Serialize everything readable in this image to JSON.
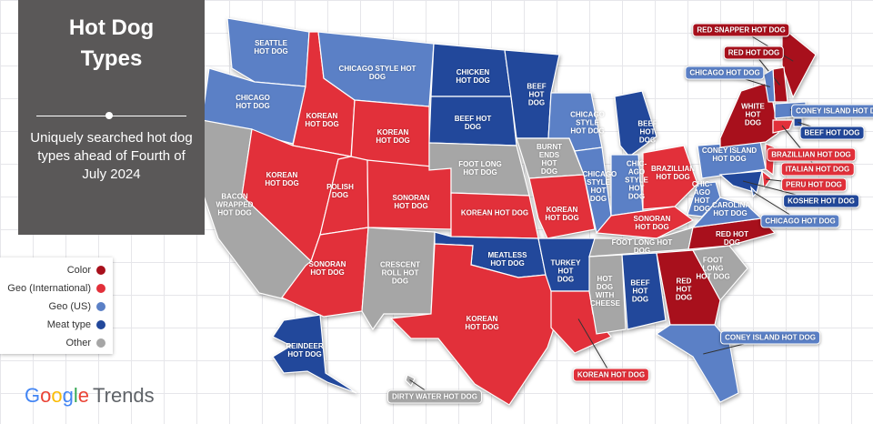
{
  "title": "Hot Dog Types",
  "subtitle": "Uniquely searched hot dog types ahead of Fourth of July 2024",
  "legend": [
    {
      "label": "Color",
      "color": "#a8101c"
    },
    {
      "label": "Geo (International)",
      "color": "#e2303a"
    },
    {
      "label": "Geo (US)",
      "color": "#5b80c6"
    },
    {
      "label": "Meat type",
      "color": "#22489b"
    },
    {
      "label": "Other",
      "color": "#a6a6a6"
    }
  ],
  "brand": {
    "google": "Google",
    "trends": "Trends"
  },
  "states": [
    {
      "label": "SEATTLE HOT DOG",
      "category": 2
    },
    {
      "label": "CHICAGO HOT DOG",
      "category": 2
    },
    {
      "label": "BACON WRAPPED HOT DOG",
      "category": 4
    },
    {
      "label": "KOREAN HOT DOG",
      "category": 1
    },
    {
      "label": "KOREAN HOT DOG",
      "category": 1
    },
    {
      "label": "CHICAGO STYLE HOT DOG",
      "category": 2
    },
    {
      "label": "KOREAN HOT DOG",
      "category": 1
    },
    {
      "label": "POLISH DOG",
      "category": 1
    },
    {
      "label": "SONORAN HOT DOG",
      "category": 1
    },
    {
      "label": "SONORAN HOT DOG",
      "category": 1
    },
    {
      "label": "CRESCENT ROLL HOT DOG",
      "category": 4
    },
    {
      "label": "CHICKEN HOT DOG",
      "category": 3
    },
    {
      "label": "BEEF HOT DOG",
      "category": 3
    },
    {
      "label": "FOOT LONG HOT DOG",
      "category": 4
    },
    {
      "label": "KOREAN HOT DOG",
      "category": 1
    },
    {
      "label": "MEATLESS HOT DOG",
      "category": 3
    },
    {
      "label": "KOREAN HOT DOG",
      "category": 1
    },
    {
      "label": "BEEF HOT DOG",
      "category": 3
    },
    {
      "label": "BURNT ENDS HOT DOG",
      "category": 4
    },
    {
      "label": "KOREAN HOT DOG",
      "category": 1
    },
    {
      "label": "TURKEY HOT DOG",
      "category": 3
    },
    {
      "label": "KOREAN HOT DOG",
      "category": 1
    },
    {
      "label": "CHICAGO STYLE HOT DOG",
      "category": 2
    },
    {
      "label": "CHICAGO STYLE HOT DOG",
      "category": 2
    },
    {
      "label": "BEEF HOT DOG",
      "category": 3
    },
    {
      "label": "CHIC-AGO STYLE HOT DOG",
      "category": 2
    },
    {
      "label": "BRAZILLIAN HOT DOG",
      "category": 1
    },
    {
      "label": "SONORAN HOT DOG",
      "category": 1
    },
    {
      "label": "FOOT LONG HOT DOG",
      "category": 4
    },
    {
      "label": "HOT DOG WITH CHEESE",
      "category": 4
    },
    {
      "label": "BEEF HOT DOG",
      "category": 3
    },
    {
      "label": "RED HOT DOG",
      "category": 0
    },
    {
      "label": "CONEY ISLAND HOT DOG",
      "category": 2
    },
    {
      "label": "FOOT LONG HOT DOG",
      "category": 4
    },
    {
      "label": "RED HOT DOG",
      "category": 0
    },
    {
      "label": "CAROLINA HOT DOG",
      "category": 2
    },
    {
      "label": "CHIC-AGO HOT DOG",
      "category": 2
    },
    {
      "label": "CONEY ISLAND HOT DOG",
      "category": 2
    },
    {
      "label": "WHITE HOT DOG",
      "category": 0
    },
    {
      "label": "RED SNAPPER HOT DOG",
      "category": 0
    },
    {
      "label": "RED HOT DOG",
      "category": 0
    },
    {
      "label": "CHICAGO HOT DOG",
      "category": 2
    },
    {
      "label": "CONEY ISLAND HOT DOG",
      "category": 2
    },
    {
      "label": "BEEF HOT DOG",
      "category": 3
    },
    {
      "label": "BRAZILLIAN HOT DOG",
      "category": 1
    },
    {
      "label": "ITALIAN HOT DOG",
      "category": 1
    },
    {
      "label": "PERU HOT DOG",
      "category": 1
    },
    {
      "label": "KOSHER HOT DOG",
      "category": 3
    },
    {
      "label": "CHICAGO HOT DOG",
      "category": 2
    },
    {
      "label": "REINDEER HOT DOG",
      "category": 3
    },
    {
      "label": "DIRTY WATER HOT DOG",
      "category": 4
    }
  ]
}
